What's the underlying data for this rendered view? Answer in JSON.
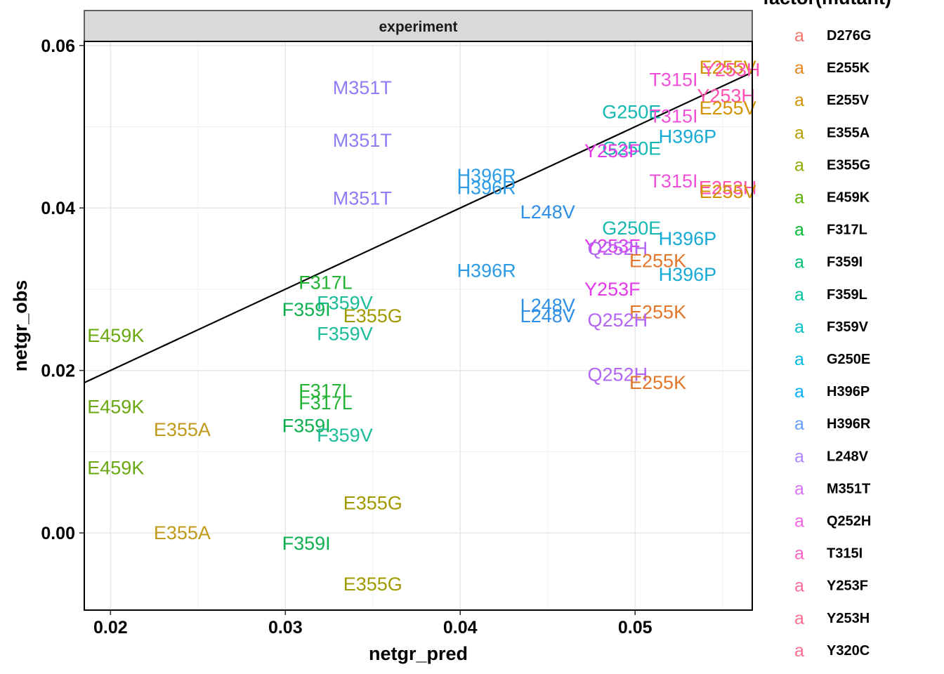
{
  "chart_data": {
    "type": "scatter",
    "geom": "text",
    "facet_strip": "experiment",
    "xlabel": "netgr_pred",
    "ylabel": "netgr_obs",
    "xlim": [
      0.0185,
      0.0567
    ],
    "ylim": [
      -0.0095,
      0.0605
    ],
    "x_ticks": [
      0.02,
      0.03,
      0.04,
      0.05
    ],
    "x_tick_labels": [
      "0.02",
      "0.03",
      "0.04",
      "0.05"
    ],
    "y_ticks": [
      0.0,
      0.02,
      0.04,
      0.06
    ],
    "y_tick_labels": [
      "0.00",
      "0.02",
      "0.04",
      "0.06"
    ],
    "x_minor_ticks": [
      0.025,
      0.035,
      0.045,
      0.055
    ],
    "y_minor_ticks": [
      0.01,
      0.03,
      0.05
    ],
    "reference_line": {
      "slope": 1,
      "intercept": 0
    },
    "legend": {
      "title": "factor(mutant)",
      "key_glyph": "a",
      "position": "right",
      "entries": [
        {
          "label": "D276G",
          "color": "#F8766D"
        },
        {
          "label": "E255K",
          "color": "#E7861B"
        },
        {
          "label": "E255V",
          "color": "#D39200"
        },
        {
          "label": "E355A",
          "color": "#B79F00"
        },
        {
          "label": "E355G",
          "color": "#93AA00"
        },
        {
          "label": "E459K",
          "color": "#5EB300"
        },
        {
          "label": "F317L",
          "color": "#00BA38"
        },
        {
          "label": "F359I",
          "color": "#00BF74"
        },
        {
          "label": "F359L",
          "color": "#00C19F"
        },
        {
          "label": "F359V",
          "color": "#00BFC4"
        },
        {
          "label": "G250E",
          "color": "#00B9E3"
        },
        {
          "label": "H396P",
          "color": "#00ADFA"
        },
        {
          "label": "H396R",
          "color": "#619CFF"
        },
        {
          "label": "L248V",
          "color": "#AE87FF"
        },
        {
          "label": "M351T",
          "color": "#DB72FB"
        },
        {
          "label": "Q252H",
          "color": "#F564E3"
        },
        {
          "label": "T315I",
          "color": "#FF61C3"
        },
        {
          "label": "Y253F",
          "color": "#FF689F"
        },
        {
          "label": "Y253H",
          "color": "#FF6C91"
        },
        {
          "label": "Y320C",
          "color": "#FF6C91"
        }
      ]
    },
    "points": [
      {
        "label": "E255V",
        "x": 0.0553,
        "y": 0.0573,
        "color": "#D39200"
      },
      {
        "label": "Y253H",
        "x": 0.0555,
        "y": 0.057,
        "color": "#FF4FB0"
      },
      {
        "label": "T315I",
        "x": 0.0522,
        "y": 0.0558,
        "color": "#F050D8"
      },
      {
        "label": "M351T",
        "x": 0.0344,
        "y": 0.0548,
        "color": "#8C7EF5"
      },
      {
        "label": "Y253H",
        "x": 0.0552,
        "y": 0.0538,
        "color": "#FF4FB0"
      },
      {
        "label": "E255V",
        "x": 0.0553,
        "y": 0.0523,
        "color": "#D39200"
      },
      {
        "label": "G250E",
        "x": 0.0498,
        "y": 0.0518,
        "color": "#14B8B0"
      },
      {
        "label": "T315I",
        "x": 0.0522,
        "y": 0.0513,
        "color": "#F050D8"
      },
      {
        "label": "H396P",
        "x": 0.053,
        "y": 0.0488,
        "color": "#17AAD4"
      },
      {
        "label": "M351T",
        "x": 0.0344,
        "y": 0.0483,
        "color": "#8C7EF5"
      },
      {
        "label": "G250E",
        "x": 0.0498,
        "y": 0.0473,
        "color": "#14B8B0"
      },
      {
        "label": "Y253F",
        "x": 0.0487,
        "y": 0.047,
        "color": "#E339E9"
      },
      {
        "label": "H396R",
        "x": 0.0415,
        "y": 0.044,
        "color": "#2B9BE6"
      },
      {
        "label": "H396R",
        "x": 0.0415,
        "y": 0.0425,
        "color": "#2B9BE6"
      },
      {
        "label": "T315I",
        "x": 0.0522,
        "y": 0.0433,
        "color": "#F050D8"
      },
      {
        "label": "E253H",
        "x": 0.0553,
        "y": 0.0425,
        "color": "#FF4FB0"
      },
      {
        "label": "E255V",
        "x": 0.0553,
        "y": 0.042,
        "color": "#D39200"
      },
      {
        "label": "M351T",
        "x": 0.0344,
        "y": 0.0412,
        "color": "#8C7EF5"
      },
      {
        "label": "L248V",
        "x": 0.045,
        "y": 0.0395,
        "color": "#2F8FE6"
      },
      {
        "label": "G250E",
        "x": 0.0498,
        "y": 0.0375,
        "color": "#14B8B0"
      },
      {
        "label": "H396P",
        "x": 0.053,
        "y": 0.0362,
        "color": "#17AAD4"
      },
      {
        "label": "Y253F",
        "x": 0.0487,
        "y": 0.0353,
        "color": "#E339E9"
      },
      {
        "label": "Q252H",
        "x": 0.049,
        "y": 0.035,
        "color": "#B266F5"
      },
      {
        "label": "E255K",
        "x": 0.0513,
        "y": 0.0335,
        "color": "#E2762B"
      },
      {
        "label": "H396R",
        "x": 0.0415,
        "y": 0.0323,
        "color": "#2B9BE6"
      },
      {
        "label": "H396P",
        "x": 0.053,
        "y": 0.0318,
        "color": "#17AAD4"
      },
      {
        "label": "F317L",
        "x": 0.0323,
        "y": 0.0308,
        "color": "#22B333"
      },
      {
        "label": "Y253F",
        "x": 0.0487,
        "y": 0.03,
        "color": "#E339E9"
      },
      {
        "label": "F359V",
        "x": 0.0334,
        "y": 0.0283,
        "color": "#1BBC9A"
      },
      {
        "label": "L248V",
        "x": 0.045,
        "y": 0.028,
        "color": "#2F8FE6"
      },
      {
        "label": "F359I",
        "x": 0.0312,
        "y": 0.0275,
        "color": "#0FB050"
      },
      {
        "label": "E255K",
        "x": 0.0513,
        "y": 0.0272,
        "color": "#E2762B"
      },
      {
        "label": "E355G",
        "x": 0.035,
        "y": 0.0267,
        "color": "#A09A00"
      },
      {
        "label": "L248V",
        "x": 0.045,
        "y": 0.0267,
        "color": "#2F8FE6"
      },
      {
        "label": "Q252H",
        "x": 0.049,
        "y": 0.0262,
        "color": "#B266F5"
      },
      {
        "label": "F359V",
        "x": 0.0334,
        "y": 0.0245,
        "color": "#1BBC9A"
      },
      {
        "label": "E459K",
        "x": 0.0203,
        "y": 0.0243,
        "color": "#6AA812"
      },
      {
        "label": "Q252H",
        "x": 0.049,
        "y": 0.0195,
        "color": "#B266F5"
      },
      {
        "label": "E255K",
        "x": 0.0513,
        "y": 0.0185,
        "color": "#E2762B"
      },
      {
        "label": "F317L",
        "x": 0.0323,
        "y": 0.0175,
        "color": "#22B333"
      },
      {
        "label": "F317L",
        "x": 0.0323,
        "y": 0.016,
        "color": "#22B333"
      },
      {
        "label": "E459K",
        "x": 0.0203,
        "y": 0.0155,
        "color": "#6AA812"
      },
      {
        "label": "F359I",
        "x": 0.0312,
        "y": 0.0132,
        "color": "#0FB050"
      },
      {
        "label": "E355A",
        "x": 0.0241,
        "y": 0.0127,
        "color": "#C09A1A"
      },
      {
        "label": "F359V",
        "x": 0.0334,
        "y": 0.012,
        "color": "#1BBC9A"
      },
      {
        "label": "E459K",
        "x": 0.0203,
        "y": 0.008,
        "color": "#6AA812"
      },
      {
        "label": "E355G",
        "x": 0.035,
        "y": 0.0037,
        "color": "#A09A00"
      },
      {
        "label": "E355A",
        "x": 0.0241,
        "y": 0.0,
        "color": "#C09A1A"
      },
      {
        "label": "F359I",
        "x": 0.0312,
        "y": -0.0013,
        "color": "#0FB050"
      },
      {
        "label": "E355G",
        "x": 0.035,
        "y": -0.0063,
        "color": "#A09A00"
      }
    ]
  }
}
